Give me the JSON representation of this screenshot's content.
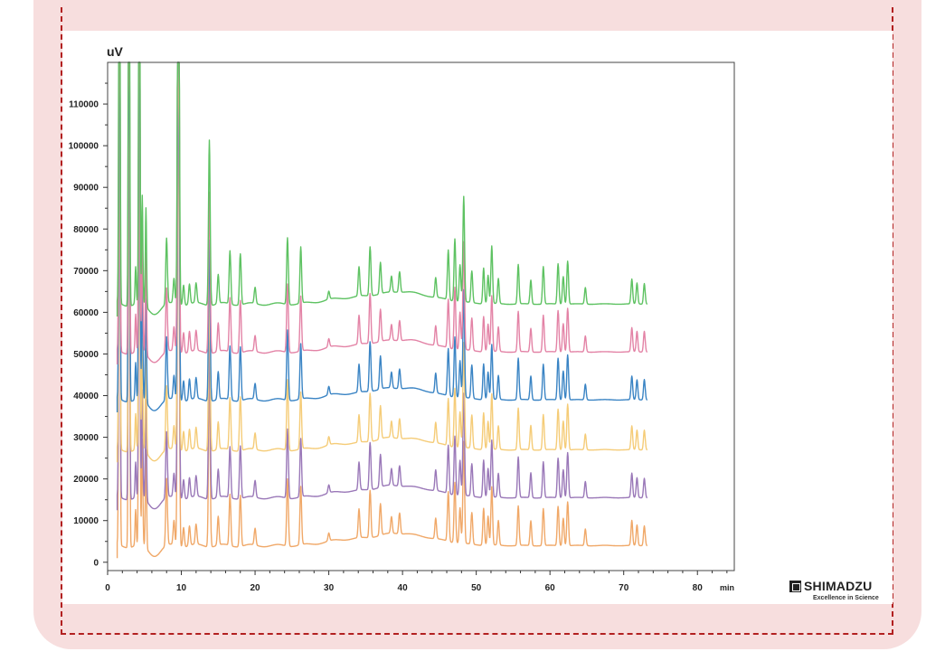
{
  "logo": {
    "name": "SHIMADZU",
    "tagline": "Excellence in Science"
  },
  "chart_data": {
    "type": "line",
    "title": "",
    "ylabel": "uV",
    "xunit": "min",
    "xlim": [
      0,
      85
    ],
    "ylim": [
      -2000,
      120000
    ],
    "xticks": [
      0,
      10,
      20,
      30,
      40,
      50,
      60,
      70,
      80
    ],
    "yticks": [
      0,
      10000,
      20000,
      30000,
      40000,
      50000,
      60000,
      70000,
      80000,
      90000,
      100000,
      110000
    ],
    "grid": false,
    "legend": "none",
    "x_range_series": [
      1.3,
      73.2
    ],
    "series_offsets_uV": [
      4000,
      15500,
      27000,
      39000,
      50500,
      62000
    ],
    "series_colors": [
      "#f0a868",
      "#9a78b8",
      "#f5cc78",
      "#3a84c4",
      "#e383a6",
      "#5ec262"
    ],
    "peaks": [
      {
        "t": 1.6,
        "h": 125000
      },
      {
        "t": 2.9,
        "h": 125000
      },
      {
        "t": 3.8,
        "h": 9000
      },
      {
        "t": 4.3,
        "h": 125000
      },
      {
        "t": 4.7,
        "h": 27000
      },
      {
        "t": 5.2,
        "h": 25000
      },
      {
        "t": 8.0,
        "h": 16000
      },
      {
        "t": 9.0,
        "h": 6000
      },
      {
        "t": 9.6,
        "h": 125000
      },
      {
        "t": 10.3,
        "h": 5000
      },
      {
        "t": 11.1,
        "h": 5000
      },
      {
        "t": 12.0,
        "h": 5000
      },
      {
        "t": 13.8,
        "h": 41000
      },
      {
        "t": 15.0,
        "h": 7000
      },
      {
        "t": 16.6,
        "h": 13000
      },
      {
        "t": 18.0,
        "h": 13000
      },
      {
        "t": 20.0,
        "h": 4000
      },
      {
        "t": 24.4,
        "h": 17000
      },
      {
        "t": 26.2,
        "h": 14000
      },
      {
        "t": 30.0,
        "h": 2000
      },
      {
        "t": 34.1,
        "h": 7000
      },
      {
        "t": 35.6,
        "h": 12000
      },
      {
        "t": 37.0,
        "h": 8000
      },
      {
        "t": 38.5,
        "h": 4000
      },
      {
        "t": 39.6,
        "h": 5000
      },
      {
        "t": 44.5,
        "h": 5000
      },
      {
        "t": 46.2,
        "h": 12000
      },
      {
        "t": 47.1,
        "h": 15000
      },
      {
        "t": 47.8,
        "h": 9000
      },
      {
        "t": 48.3,
        "h": 26000
      },
      {
        "t": 49.4,
        "h": 8000
      },
      {
        "t": 51.0,
        "h": 9000
      },
      {
        "t": 51.6,
        "h": 7000
      },
      {
        "t": 52.1,
        "h": 14000
      },
      {
        "t": 53.0,
        "h": 6000
      },
      {
        "t": 55.7,
        "h": 10000
      },
      {
        "t": 57.4,
        "h": 6000
      },
      {
        "t": 59.1,
        "h": 9000
      },
      {
        "t": 61.1,
        "h": 10000
      },
      {
        "t": 61.8,
        "h": 7000
      },
      {
        "t": 62.4,
        "h": 11000
      },
      {
        "t": 64.8,
        "h": 4000
      },
      {
        "t": 71.1,
        "h": 6000
      },
      {
        "t": 71.8,
        "h": 5000
      },
      {
        "t": 72.8,
        "h": 5000
      }
    ]
  }
}
